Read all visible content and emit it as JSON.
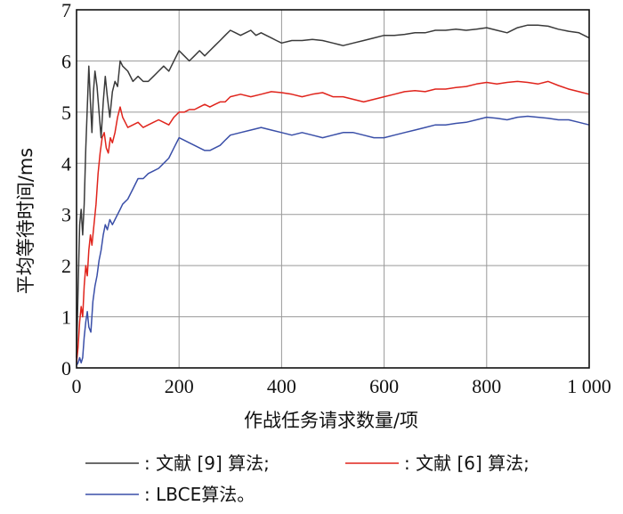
{
  "chart_data": {
    "type": "line",
    "title": "",
    "xlabel": "作战任务请求数量/项",
    "ylabel": "平均等待时间/ms",
    "xlim": [
      0,
      1000
    ],
    "ylim": [
      0,
      7
    ],
    "x_ticks": [
      0,
      200,
      400,
      600,
      800,
      1000
    ],
    "x_tick_labels": [
      "0",
      "200",
      "400",
      "600",
      "800",
      "1 000"
    ],
    "y_ticks": [
      0,
      1,
      2,
      3,
      4,
      5,
      6,
      7
    ],
    "y_tick_labels": [
      "0",
      "1",
      "2",
      "3",
      "4",
      "5",
      "6",
      "7"
    ],
    "grid": true,
    "legend_position": "bottom",
    "series": [
      {
        "name": "文献 [9] 算法;",
        "legend_prefix": ": ",
        "color": "#3a3a3a",
        "points": [
          [
            0,
            0.2
          ],
          [
            3,
            1.5
          ],
          [
            6,
            2.8
          ],
          [
            9,
            3.1
          ],
          [
            12,
            2.6
          ],
          [
            15,
            3.2
          ],
          [
            18,
            4.3
          ],
          [
            21,
            5.1
          ],
          [
            24,
            5.9
          ],
          [
            27,
            5.2
          ],
          [
            30,
            4.6
          ],
          [
            33,
            5.4
          ],
          [
            36,
            5.8
          ],
          [
            40,
            5.5
          ],
          [
            44,
            5.0
          ],
          [
            48,
            4.5
          ],
          [
            52,
            5.2
          ],
          [
            56,
            5.7
          ],
          [
            60,
            5.3
          ],
          [
            65,
            4.9
          ],
          [
            70,
            5.4
          ],
          [
            75,
            5.6
          ],
          [
            80,
            5.5
          ],
          [
            85,
            6.0
          ],
          [
            90,
            5.9
          ],
          [
            100,
            5.8
          ],
          [
            110,
            5.6
          ],
          [
            120,
            5.7
          ],
          [
            130,
            5.6
          ],
          [
            140,
            5.6
          ],
          [
            150,
            5.7
          ],
          [
            160,
            5.8
          ],
          [
            170,
            5.9
          ],
          [
            180,
            5.8
          ],
          [
            190,
            6.0
          ],
          [
            200,
            6.2
          ],
          [
            210,
            6.1
          ],
          [
            220,
            6.0
          ],
          [
            230,
            6.1
          ],
          [
            240,
            6.2
          ],
          [
            250,
            6.1
          ],
          [
            260,
            6.2
          ],
          [
            270,
            6.3
          ],
          [
            280,
            6.4
          ],
          [
            290,
            6.5
          ],
          [
            300,
            6.6
          ],
          [
            310,
            6.55
          ],
          [
            320,
            6.5
          ],
          [
            330,
            6.55
          ],
          [
            340,
            6.6
          ],
          [
            350,
            6.5
          ],
          [
            360,
            6.55
          ],
          [
            370,
            6.5
          ],
          [
            380,
            6.45
          ],
          [
            390,
            6.4
          ],
          [
            400,
            6.35
          ],
          [
            420,
            6.4
          ],
          [
            440,
            6.4
          ],
          [
            460,
            6.42
          ],
          [
            480,
            6.4
          ],
          [
            500,
            6.35
          ],
          [
            520,
            6.3
          ],
          [
            540,
            6.35
          ],
          [
            560,
            6.4
          ],
          [
            580,
            6.45
          ],
          [
            600,
            6.5
          ],
          [
            620,
            6.5
          ],
          [
            640,
            6.52
          ],
          [
            660,
            6.55
          ],
          [
            680,
            6.55
          ],
          [
            700,
            6.6
          ],
          [
            720,
            6.6
          ],
          [
            740,
            6.62
          ],
          [
            760,
            6.6
          ],
          [
            780,
            6.62
          ],
          [
            800,
            6.65
          ],
          [
            820,
            6.6
          ],
          [
            840,
            6.55
          ],
          [
            860,
            6.65
          ],
          [
            880,
            6.7
          ],
          [
            900,
            6.7
          ],
          [
            920,
            6.68
          ],
          [
            940,
            6.62
          ],
          [
            960,
            6.58
          ],
          [
            980,
            6.55
          ],
          [
            1000,
            6.45
          ]
        ]
      },
      {
        "name": "文献 [6] 算法;",
        "legend_prefix": ": ",
        "color": "#e0241c",
        "points": [
          [
            0,
            0.1
          ],
          [
            3,
            0.4
          ],
          [
            6,
            0.9
          ],
          [
            9,
            1.2
          ],
          [
            12,
            1.0
          ],
          [
            15,
            1.6
          ],
          [
            18,
            2.0
          ],
          [
            21,
            1.8
          ],
          [
            24,
            2.3
          ],
          [
            27,
            2.6
          ],
          [
            30,
            2.4
          ],
          [
            34,
            2.8
          ],
          [
            38,
            3.2
          ],
          [
            42,
            3.8
          ],
          [
            46,
            4.2
          ],
          [
            50,
            4.5
          ],
          [
            54,
            4.6
          ],
          [
            58,
            4.3
          ],
          [
            62,
            4.2
          ],
          [
            66,
            4.5
          ],
          [
            70,
            4.4
          ],
          [
            75,
            4.6
          ],
          [
            80,
            4.9
          ],
          [
            85,
            5.1
          ],
          [
            90,
            4.9
          ],
          [
            95,
            4.8
          ],
          [
            100,
            4.7
          ],
          [
            110,
            4.75
          ],
          [
            120,
            4.8
          ],
          [
            130,
            4.7
          ],
          [
            140,
            4.75
          ],
          [
            150,
            4.8
          ],
          [
            160,
            4.85
          ],
          [
            170,
            4.8
          ],
          [
            180,
            4.75
          ],
          [
            190,
            4.9
          ],
          [
            200,
            5.0
          ],
          [
            210,
            5.0
          ],
          [
            220,
            5.05
          ],
          [
            230,
            5.05
          ],
          [
            240,
            5.1
          ],
          [
            250,
            5.15
          ],
          [
            260,
            5.1
          ],
          [
            270,
            5.15
          ],
          [
            280,
            5.2
          ],
          [
            290,
            5.2
          ],
          [
            300,
            5.3
          ],
          [
            320,
            5.35
          ],
          [
            340,
            5.3
          ],
          [
            360,
            5.35
          ],
          [
            380,
            5.4
          ],
          [
            400,
            5.38
          ],
          [
            420,
            5.35
          ],
          [
            440,
            5.3
          ],
          [
            460,
            5.35
          ],
          [
            480,
            5.38
          ],
          [
            500,
            5.3
          ],
          [
            520,
            5.3
          ],
          [
            540,
            5.25
          ],
          [
            560,
            5.2
          ],
          [
            580,
            5.25
          ],
          [
            600,
            5.3
          ],
          [
            620,
            5.35
          ],
          [
            640,
            5.4
          ],
          [
            660,
            5.42
          ],
          [
            680,
            5.4
          ],
          [
            700,
            5.45
          ],
          [
            720,
            5.45
          ],
          [
            740,
            5.48
          ],
          [
            760,
            5.5
          ],
          [
            780,
            5.55
          ],
          [
            800,
            5.58
          ],
          [
            820,
            5.55
          ],
          [
            840,
            5.58
          ],
          [
            860,
            5.6
          ],
          [
            880,
            5.58
          ],
          [
            900,
            5.55
          ],
          [
            920,
            5.6
          ],
          [
            940,
            5.52
          ],
          [
            960,
            5.45
          ],
          [
            980,
            5.4
          ],
          [
            1000,
            5.35
          ]
        ]
      },
      {
        "name": "LBCE算法。",
        "legend_prefix": ": ",
        "color": "#3a4fa8",
        "points": [
          [
            0,
            0.05
          ],
          [
            3,
            0.1
          ],
          [
            6,
            0.2
          ],
          [
            9,
            0.1
          ],
          [
            12,
            0.2
          ],
          [
            15,
            0.6
          ],
          [
            18,
            0.9
          ],
          [
            21,
            1.1
          ],
          [
            24,
            0.8
          ],
          [
            28,
            0.7
          ],
          [
            32,
            1.3
          ],
          [
            36,
            1.6
          ],
          [
            40,
            1.8
          ],
          [
            44,
            2.1
          ],
          [
            48,
            2.3
          ],
          [
            52,
            2.6
          ],
          [
            56,
            2.8
          ],
          [
            60,
            2.7
          ],
          [
            65,
            2.9
          ],
          [
            70,
            2.8
          ],
          [
            75,
            2.9
          ],
          [
            80,
            3.0
          ],
          [
            85,
            3.1
          ],
          [
            90,
            3.2
          ],
          [
            100,
            3.3
          ],
          [
            110,
            3.5
          ],
          [
            120,
            3.7
          ],
          [
            130,
            3.7
          ],
          [
            140,
            3.8
          ],
          [
            150,
            3.85
          ],
          [
            160,
            3.9
          ],
          [
            170,
            4.0
          ],
          [
            180,
            4.1
          ],
          [
            190,
            4.3
          ],
          [
            200,
            4.5
          ],
          [
            210,
            4.45
          ],
          [
            220,
            4.4
          ],
          [
            230,
            4.35
          ],
          [
            240,
            4.3
          ],
          [
            250,
            4.25
          ],
          [
            260,
            4.25
          ],
          [
            270,
            4.3
          ],
          [
            280,
            4.35
          ],
          [
            290,
            4.45
          ],
          [
            300,
            4.55
          ],
          [
            320,
            4.6
          ],
          [
            340,
            4.65
          ],
          [
            360,
            4.7
          ],
          [
            380,
            4.65
          ],
          [
            400,
            4.6
          ],
          [
            420,
            4.55
          ],
          [
            440,
            4.6
          ],
          [
            460,
            4.55
          ],
          [
            480,
            4.5
          ],
          [
            500,
            4.55
          ],
          [
            520,
            4.6
          ],
          [
            540,
            4.6
          ],
          [
            560,
            4.55
          ],
          [
            580,
            4.5
          ],
          [
            600,
            4.5
          ],
          [
            620,
            4.55
          ],
          [
            640,
            4.6
          ],
          [
            660,
            4.65
          ],
          [
            680,
            4.7
          ],
          [
            700,
            4.75
          ],
          [
            720,
            4.75
          ],
          [
            740,
            4.78
          ],
          [
            760,
            4.8
          ],
          [
            780,
            4.85
          ],
          [
            800,
            4.9
          ],
          [
            820,
            4.88
          ],
          [
            840,
            4.85
          ],
          [
            860,
            4.9
          ],
          [
            880,
            4.92
          ],
          [
            900,
            4.9
          ],
          [
            920,
            4.88
          ],
          [
            940,
            4.85
          ],
          [
            960,
            4.85
          ],
          [
            980,
            4.8
          ],
          [
            1000,
            4.75
          ]
        ]
      }
    ]
  }
}
